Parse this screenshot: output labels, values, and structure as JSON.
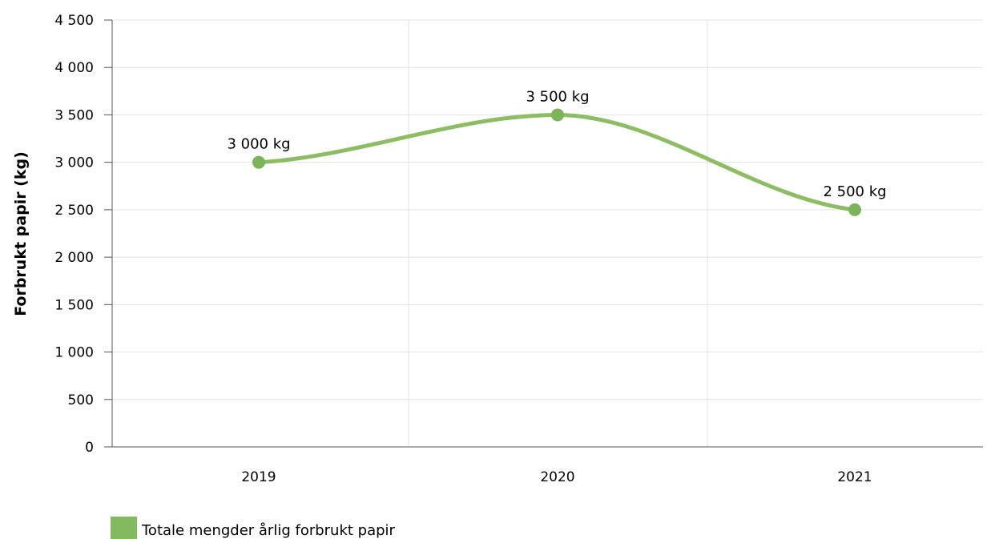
{
  "chart_data": {
    "type": "line",
    "smooth": true,
    "categories": [
      "2019",
      "2020",
      "2021"
    ],
    "series": [
      {
        "name": "Totale mengder årlig forbrukt papir",
        "values": [
          3000,
          3500,
          2500
        ],
        "color": "#8cbd62",
        "data_labels": [
          "3 000 kg",
          "3 500 kg",
          "2 500 kg"
        ]
      }
    ],
    "ylabel": "Forbrukt papir (kg)",
    "xlabel": "",
    "ylim": [
      0,
      4500
    ],
    "yticks": [
      0,
      500,
      1000,
      1500,
      2000,
      2500,
      3000,
      3500,
      4000,
      4500
    ],
    "ytick_labels": [
      "0",
      "500",
      "1 000",
      "1 500",
      "2 000",
      "2 500",
      "3 000",
      "3 500",
      "4 000",
      "4 500"
    ],
    "grid": true,
    "legend_position": "bottom-left"
  },
  "colors": {
    "series": "#8cbd62",
    "point": "#7cb45a",
    "legend_swatch": "#84ba5f",
    "grid": "#e3e3e3",
    "axis": "#555555"
  }
}
